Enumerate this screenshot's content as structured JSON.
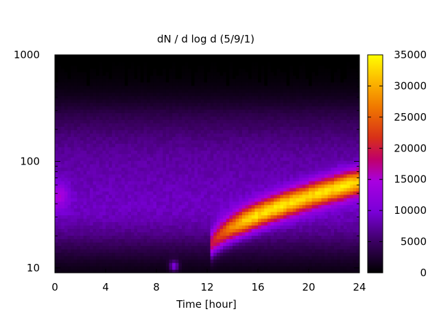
{
  "chart_data": {
    "type": "heatmap",
    "title": "dN / d log d (5/9/1)",
    "xlabel": "Time [hour]",
    "ylabel": "",
    "xlim": [
      0,
      24
    ],
    "ylim": [
      9,
      1000
    ],
    "y_scale": "log",
    "x_ticks": [
      "0",
      "4",
      "8",
      "12",
      "16",
      "20",
      "24"
    ],
    "y_ticks": [
      "10",
      "100",
      "1000"
    ],
    "colorbar": {
      "range": [
        0,
        35000
      ],
      "ticks": [
        "0",
        "5000",
        "10000",
        "15000",
        "20000",
        "25000",
        "30000",
        "35000"
      ],
      "palette": "black-purple-red-orange-yellow"
    },
    "features": [
      {
        "label": "background mode",
        "time": [
          0,
          24
        ],
        "diameter_peak": 100,
        "value": 7000
      },
      {
        "label": "growth mode",
        "time": [
          12.2,
          24
        ],
        "diameter_start": 15,
        "diameter_end": 65,
        "value_peak": 25000
      },
      {
        "label": "upper cutoff (no data)",
        "diameter_above": 500,
        "value": 0
      }
    ]
  }
}
